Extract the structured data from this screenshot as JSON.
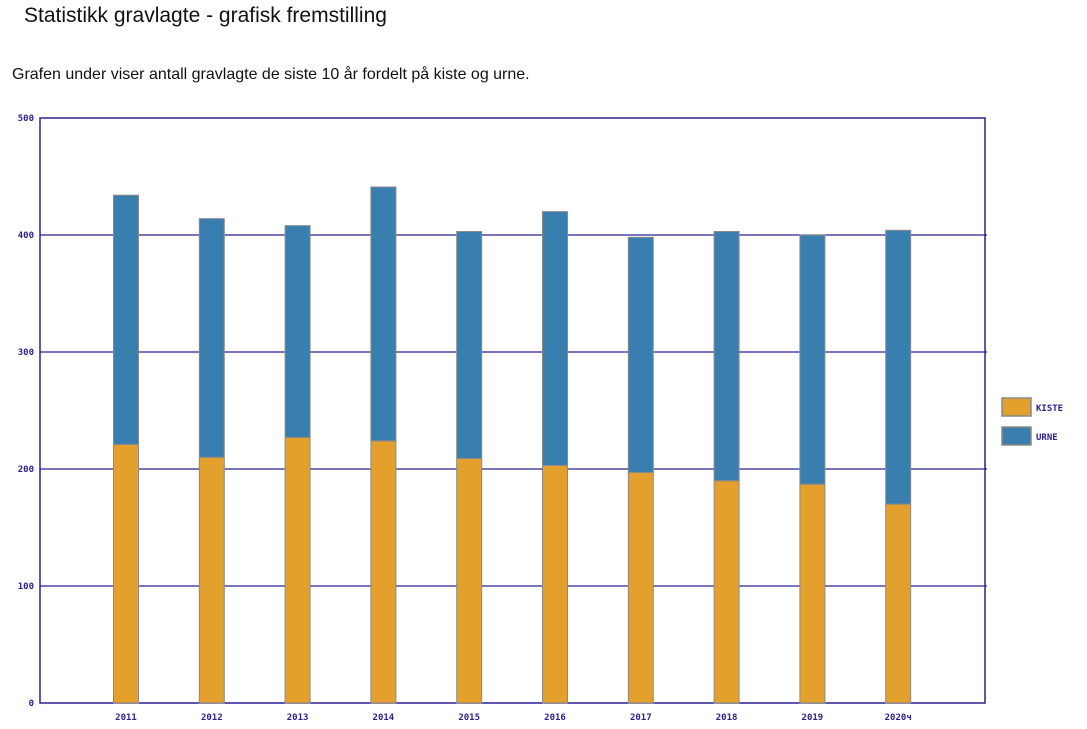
{
  "header": {
    "title": "Statistikk gravlagte - grafisk fremstilling",
    "description": "Grafen under viser antall gravlagte de siste 10 år fordelt på kiste og urne."
  },
  "chart_data": {
    "type": "bar",
    "stacked": true,
    "categories": [
      "2011",
      "2012",
      "2013",
      "2014",
      "2015",
      "2016",
      "2017",
      "2018",
      "2019",
      "2020ч"
    ],
    "series": [
      {
        "name": "KISTE",
        "color": "#e3a02c",
        "values": [
          221,
          210,
          227,
          224,
          209,
          203,
          197,
          190,
          187,
          170
        ]
      },
      {
        "name": "URNE",
        "color": "#387eaf",
        "values": [
          213,
          204,
          181,
          217,
          194,
          217,
          201,
          213,
          213,
          234
        ]
      }
    ],
    "ylim": [
      0,
      500
    ],
    "yticks": [
      0,
      100,
      200,
      300,
      400,
      500
    ],
    "grid": true,
    "legend": "right",
    "axis_color": "#2b2194"
  }
}
